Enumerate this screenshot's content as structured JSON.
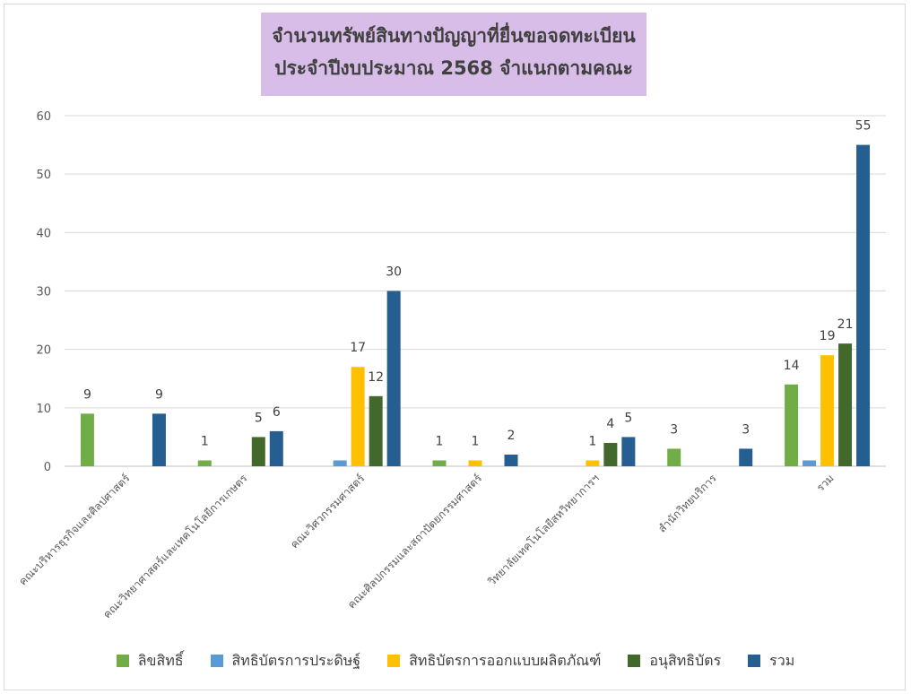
{
  "chart_data": {
    "type": "bar",
    "title": [
      "จำนวนทรัพย์สินทางปัญญาที่ยื่นขอจดทะเบียน",
      "ประจำปีงบประมาณ 2568 จำแนกตามคณะ"
    ],
    "categories": [
      "คณะบริหารธุรกิจและศิลปศาสตร์",
      "คณะวิทยาศาสตร์และเทคโนโลยีการเกษตร",
      "คณะวิศวกรรมศาสตร์",
      "คณะศิลปกรรมและสถาปัตยกรรมศาสตร์",
      "วิทยาลัยเทคโนโลยีสหวิทยาการฯ",
      "สำนักวิทยบริการ",
      "รวม"
    ],
    "series": [
      {
        "name": "ลิขสิทธิ์",
        "color": "#70ad47",
        "values": [
          9,
          1,
          0,
          1,
          0,
          3,
          14
        ]
      },
      {
        "name": "สิทธิบัตรการประดิษฐ์",
        "color": "#5b9bd5",
        "values": [
          0,
          0,
          1,
          0,
          0,
          0,
          1
        ]
      },
      {
        "name": "สิทธิบัตรการออกแบบผลิตภัณฑ์",
        "color": "#ffc000",
        "values": [
          0,
          0,
          17,
          1,
          1,
          0,
          19
        ]
      },
      {
        "name": "อนุสิทธิบัตร",
        "color": "#43682b",
        "values": [
          0,
          5,
          12,
          0,
          4,
          0,
          21
        ]
      },
      {
        "name": "รวม",
        "color": "#255e91",
        "values": [
          9,
          6,
          30,
          2,
          5,
          3,
          55
        ]
      }
    ],
    "data_labels": [
      [
        9,
        1,
        null,
        1,
        null,
        3,
        14
      ],
      [
        null,
        null,
        null,
        null,
        null,
        null,
        null
      ],
      [
        null,
        null,
        17,
        1,
        1,
        null,
        19
      ],
      [
        null,
        5,
        12,
        null,
        4,
        null,
        21
      ],
      [
        9,
        6,
        30,
        2,
        5,
        3,
        55
      ]
    ],
    "yticks": [
      0,
      10,
      20,
      30,
      40,
      50,
      60
    ],
    "ylim": [
      0,
      60
    ],
    "grid": true,
    "legend_position": "bottom",
    "title_background": "#d8bde8"
  }
}
